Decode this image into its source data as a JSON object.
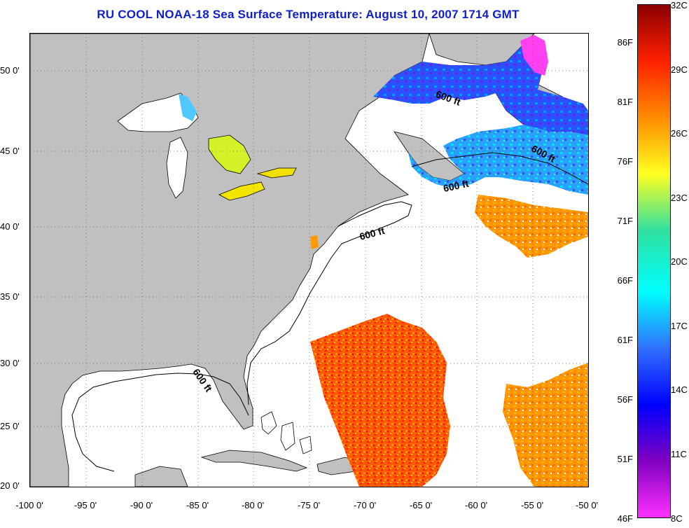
{
  "title": "RU COOL  NOAA-18  Sea Surface Temperature:  August 10, 2007 1714 GMT",
  "map": {
    "lat_ticks": [
      "50 0'",
      "45 0'",
      "40 0'",
      "35 0'",
      "30 0'",
      "25 0'",
      "20 0'"
    ],
    "lon_ticks": [
      "-100 0'",
      "-95 0'",
      "-90 0'",
      "-85 0'",
      "-80 0'",
      "-75 0'",
      "-70 0'",
      "-65 0'",
      "-60 0'",
      "-55 0'",
      "-50 0'"
    ],
    "isobath_labels": [
      "600 ft",
      "600 ft",
      "600 ft",
      "600 ft",
      "600 ft"
    ],
    "colors": {
      "land": "#c0c0c0",
      "ocean_no_data": "#ffffff",
      "grid": "#555555"
    }
  },
  "colorbar": {
    "celsius_labels": [
      "32C",
      "29C",
      "26C",
      "23C",
      "20C",
      "17C",
      "14C",
      "11C",
      "8C"
    ],
    "fahrenheit_labels": [
      "86F",
      "81F",
      "76F",
      "71F",
      "66F",
      "61F",
      "56F",
      "51F",
      "46F"
    ],
    "gradient": [
      "#8b0000",
      "#ff2000",
      "#ff8c00",
      "#ffff20",
      "#30e0a0",
      "#00ffff",
      "#3070ff",
      "#0000ff",
      "#8000c0",
      "#ff30ff"
    ]
  }
}
